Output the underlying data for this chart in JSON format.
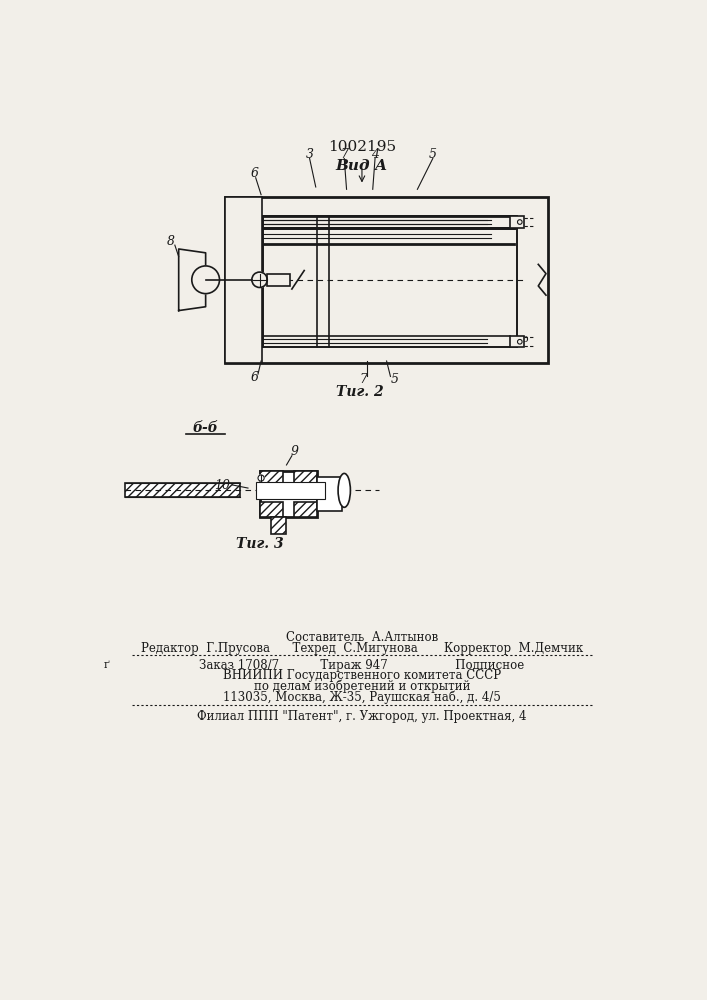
{
  "title": "1002195",
  "bg_color": "#f2efe9",
  "line_color": "#1a1a1a",
  "fig2_label": "Τиг. 2",
  "fig3_label": "Τиг. 3",
  "vida_label": "Вид А",
  "bb_label": "б-б",
  "footer_line1": "Составитель  А.Алтынов",
  "footer_line2": "Редактор  Г.Прусова      Техред  С.Мигунова       Корректор  М.Демчик",
  "footer_line3": "Заказ 1708/7           Тираж 947                  Подписное",
  "footer_line4": "ВНИИПИ Государственного комитета СССР",
  "footer_line5": "по делам изобретений и открытий",
  "footer_line6": "113035, Москва, Ж-35, Раушская наб., д. 4/5",
  "footer_line7": "Филиал ППП \"Патент\", г. Ужгород, ул. Проектная, 4"
}
